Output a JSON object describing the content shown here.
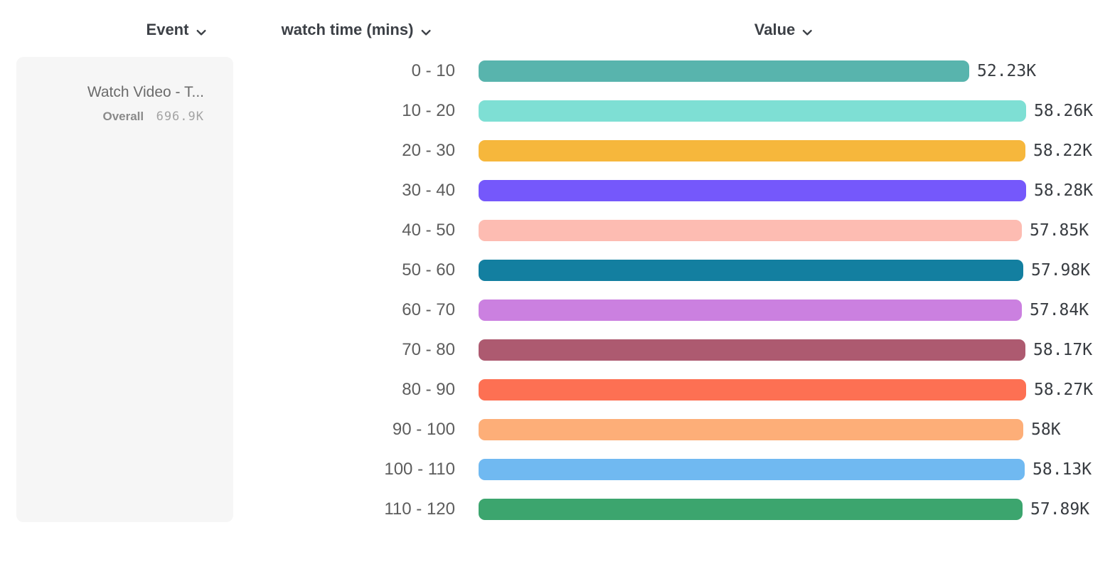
{
  "header": {
    "columns": [
      {
        "id": "event",
        "label": "Event"
      },
      {
        "id": "breakdown",
        "label": "watch time (mins)"
      },
      {
        "id": "value",
        "label": "Value"
      }
    ]
  },
  "legend": {
    "event_name": "Watch Video - T...",
    "overall_label": "Overall",
    "overall_value": "696.9K"
  },
  "chart_data": {
    "type": "bar",
    "orientation": "horizontal",
    "title": "",
    "xlabel": "Value",
    "ylabel": "watch time (mins)",
    "xlim": [
      0,
      58280
    ],
    "grid": false,
    "legend_position": "left",
    "categories": [
      "0 - 10",
      "10 - 20",
      "20 - 30",
      "30 - 40",
      "40 - 50",
      "50 - 60",
      "60 - 70",
      "70 - 80",
      "80 - 90",
      "90 - 100",
      "100 - 110",
      "110 - 120"
    ],
    "values": [
      52230,
      58260,
      58220,
      58280,
      57850,
      57980,
      57840,
      58170,
      58270,
      58000,
      58130,
      57890
    ],
    "value_labels": [
      "52.23K",
      "58.26K",
      "58.22K",
      "58.28K",
      "57.85K",
      "57.98K",
      "57.84K",
      "58.17K",
      "58.27K",
      "58K",
      "58.13K",
      "57.89K"
    ],
    "bar_colors": [
      "#58b4ad",
      "#7edfd4",
      "#f6b73c",
      "#7558fb",
      "#fdbcb2",
      "#137fa0",
      "#cb80e0",
      "#ad5a70",
      "#fd7053",
      "#fdae78",
      "#70b9f1",
      "#3ca56e"
    ]
  }
}
